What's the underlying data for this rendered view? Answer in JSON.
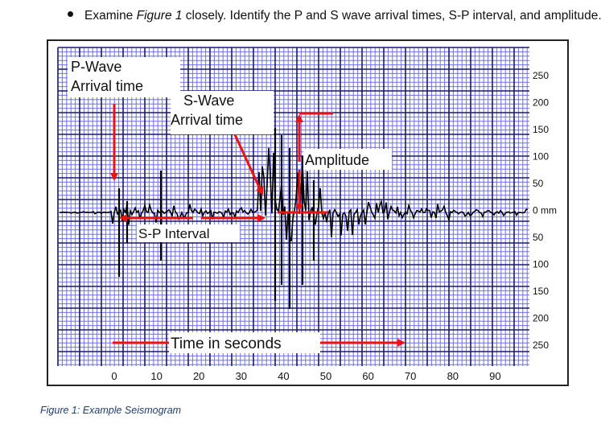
{
  "instruction": {
    "prefix": "Examine ",
    "figure_ref": "Figure 1",
    "suffix": " closely.  Identify the P and S wave arrival times, S-P interval, and amplitude."
  },
  "seismogram": {
    "annotations": {
      "p_wave_line1": "P-Wave",
      "p_wave_line2": "Arrival time",
      "s_wave_line1": "S-Wave",
      "s_wave_line2": "Arrival time",
      "amplitude": "Amplitude",
      "sp_interval": "S-P Interval",
      "time_label": "Time in seconds"
    },
    "x_ticks": [
      "0",
      "10",
      "20",
      "30",
      "40",
      "50",
      "60",
      "70",
      "80",
      "90"
    ],
    "y_ticks": [
      "250",
      "200",
      "150",
      "100",
      "50",
      "0 mm",
      "50",
      "100",
      "150",
      "200",
      "250"
    ],
    "colors": {
      "grid_major": "#1a1a6e",
      "grid_minor": "#6f6ff0",
      "background": "#ffffff",
      "trace": "#000000",
      "arrows": "#ee1111"
    }
  },
  "caption": "Figure 1: Example Seismogram"
}
